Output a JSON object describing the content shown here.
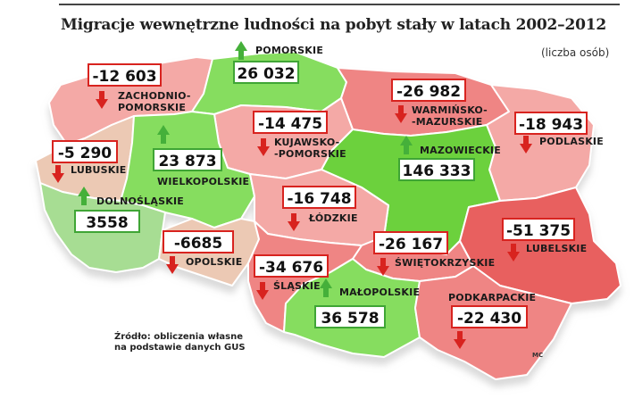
{
  "title": "Migracje wewnętrzne ludności na pobyt stały w latach 2002–2012",
  "unit": "(liczba osób)",
  "source": "Źródło: obliczenia własne\nna podstawie danych GUS",
  "credit": "MC",
  "colors": {
    "strong_negative": "#e8605f",
    "negative": "#ef8584",
    "light_negative": "#f4a9a6",
    "slight_negative": "#ecc9b4",
    "slight_positive": "#a7dd93",
    "positive": "#86dd5f",
    "strong_positive": "#6cd13e",
    "border": "#ffffff",
    "arrow_negative": "#d8231f",
    "arrow_positive": "#45b03a"
  },
  "regions": [
    {
      "id": "pomorskie",
      "name": "POMORSKIE",
      "value": "26 032",
      "direction": "up"
    },
    {
      "id": "zachodniopomorskie",
      "name": "ZACHODNIO-\nPOMORSKIE",
      "value": "-12 603",
      "direction": "down"
    },
    {
      "id": "warminsko-mazurskie",
      "name": "WARMIŃSKO-\n-MAZURSKIE",
      "value": "-26 982",
      "direction": "down"
    },
    {
      "id": "podlaskie",
      "name": "PODLASKIE",
      "value": "-18 943",
      "direction": "down"
    },
    {
      "id": "kujawsko-pomorskie",
      "name": "KUJAWSKO-\n-POMORSKIE",
      "value": "-14 475",
      "direction": "down"
    },
    {
      "id": "lubuskie",
      "name": "LUBUSKIE",
      "value": "-5 290",
      "direction": "down"
    },
    {
      "id": "wielkopolskie",
      "name": "WIELKOPOLSKIE",
      "value": "23 873",
      "direction": "up"
    },
    {
      "id": "mazowieckie",
      "name": "MAZOWIECKIE",
      "value": "146 333",
      "direction": "up"
    },
    {
      "id": "dolnoslaskie",
      "name": "DOLNOŚLĄSKIE",
      "value": "3558",
      "direction": "up"
    },
    {
      "id": "lodzkie",
      "name": "ŁÓDZKIE",
      "value": "-16 748",
      "direction": "down"
    },
    {
      "id": "lubelskie",
      "name": "LUBELSKIE",
      "value": "-51 375",
      "direction": "down"
    },
    {
      "id": "opolskie",
      "name": "OPOLSKIE",
      "value": "-6685",
      "direction": "down"
    },
    {
      "id": "swietokrzyskie",
      "name": "ŚWIĘTOKRZYSKIE",
      "value": "-26 167",
      "direction": "down"
    },
    {
      "id": "slaskie",
      "name": "ŚLĄSKIE",
      "value": "-34 676",
      "direction": "down"
    },
    {
      "id": "malopolskie",
      "name": "MAŁOPOLSKIE",
      "value": "36 578",
      "direction": "up"
    },
    {
      "id": "podkarpackie",
      "name": "PODKARPACKIE",
      "value": "-22 430",
      "direction": "down"
    }
  ]
}
